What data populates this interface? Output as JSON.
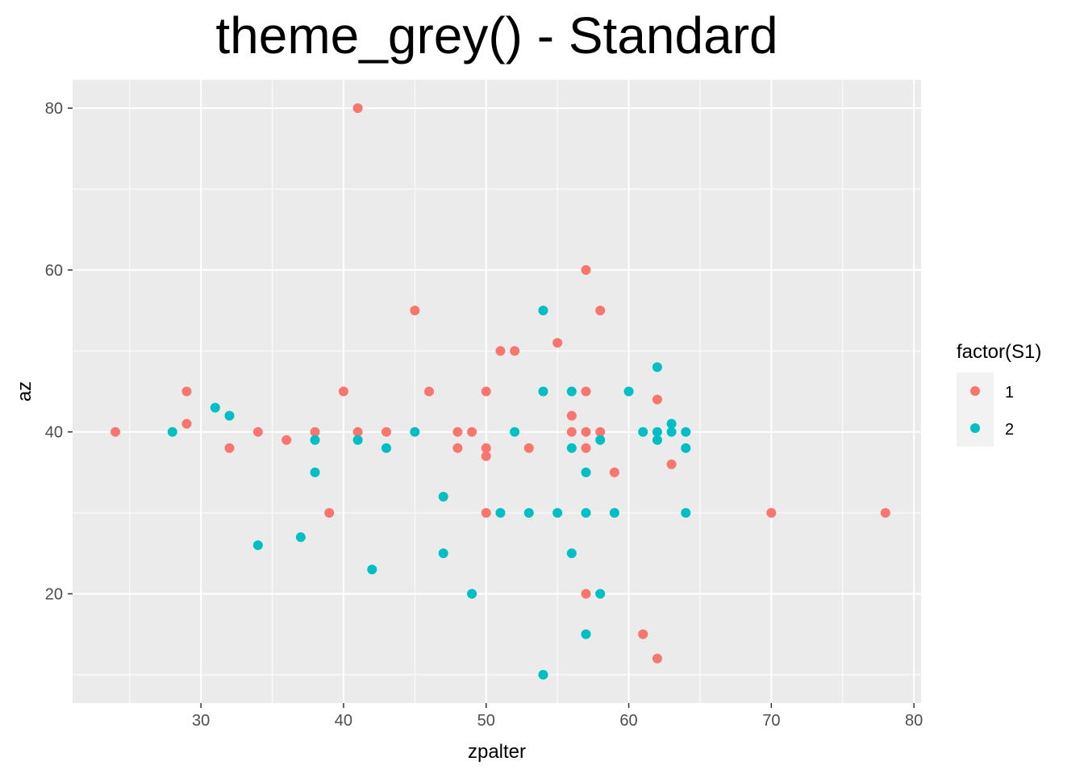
{
  "chart_data": {
    "type": "scatter",
    "title": "theme_grey() - Standard",
    "xlabel": "zpalter",
    "ylabel": "az",
    "xlim": [
      21,
      80.5
    ],
    "ylim": [
      6.5,
      83.5
    ],
    "x_ticks": [
      30,
      40,
      50,
      60,
      70,
      80
    ],
    "y_ticks": [
      20,
      40,
      60,
      80
    ],
    "grid": true,
    "legend": {
      "title": "factor(S1)",
      "placement": "right",
      "entries": [
        "1",
        "2"
      ]
    },
    "colors": {
      "1": "#F8766D",
      "2": "#00BFC4",
      "panel": "#EBEBEB"
    },
    "series": [
      {
        "name": "1",
        "points": [
          [
            24,
            40
          ],
          [
            29,
            45
          ],
          [
            29,
            41
          ],
          [
            32,
            38
          ],
          [
            34,
            40
          ],
          [
            36,
            39
          ],
          [
            38,
            40
          ],
          [
            39,
            30
          ],
          [
            40,
            45
          ],
          [
            41,
            80
          ],
          [
            41,
            40
          ],
          [
            43,
            40
          ],
          [
            45,
            55
          ],
          [
            46,
            45
          ],
          [
            48,
            40
          ],
          [
            48,
            38
          ],
          [
            49,
            40
          ],
          [
            50,
            45
          ],
          [
            50,
            38
          ],
          [
            50,
            37
          ],
          [
            50,
            30
          ],
          [
            51,
            50
          ],
          [
            52,
            50
          ],
          [
            53,
            38
          ],
          [
            55,
            51
          ],
          [
            56,
            42
          ],
          [
            56,
            40
          ],
          [
            57,
            60
          ],
          [
            57,
            45
          ],
          [
            57,
            40
          ],
          [
            57,
            38
          ],
          [
            57,
            20
          ],
          [
            58,
            55
          ],
          [
            58,
            40
          ],
          [
            59,
            35
          ],
          [
            61,
            15
          ],
          [
            62,
            44
          ],
          [
            62,
            12
          ],
          [
            63,
            36
          ],
          [
            70,
            30
          ],
          [
            78,
            30
          ]
        ]
      },
      {
        "name": "2",
        "points": [
          [
            28,
            40
          ],
          [
            31,
            43
          ],
          [
            32,
            42
          ],
          [
            34,
            26
          ],
          [
            37,
            27
          ],
          [
            38,
            39
          ],
          [
            38,
            35
          ],
          [
            41,
            39
          ],
          [
            42,
            23
          ],
          [
            43,
            38
          ],
          [
            45,
            40
          ],
          [
            47,
            32
          ],
          [
            47,
            25
          ],
          [
            49,
            20
          ],
          [
            51,
            30
          ],
          [
            52,
            40
          ],
          [
            53,
            30
          ],
          [
            54,
            55
          ],
          [
            54,
            45
          ],
          [
            54,
            10
          ],
          [
            55,
            30
          ],
          [
            56,
            45
          ],
          [
            56,
            38
          ],
          [
            56,
            25
          ],
          [
            57,
            35
          ],
          [
            57,
            30
          ],
          [
            57,
            15
          ],
          [
            58,
            39
          ],
          [
            58,
            20
          ],
          [
            59,
            30
          ],
          [
            60,
            45
          ],
          [
            61,
            40
          ],
          [
            62,
            48
          ],
          [
            62,
            40
          ],
          [
            62,
            39
          ],
          [
            63,
            41
          ],
          [
            63,
            40
          ],
          [
            64,
            40
          ],
          [
            64,
            38
          ],
          [
            64,
            30
          ]
        ]
      }
    ]
  }
}
